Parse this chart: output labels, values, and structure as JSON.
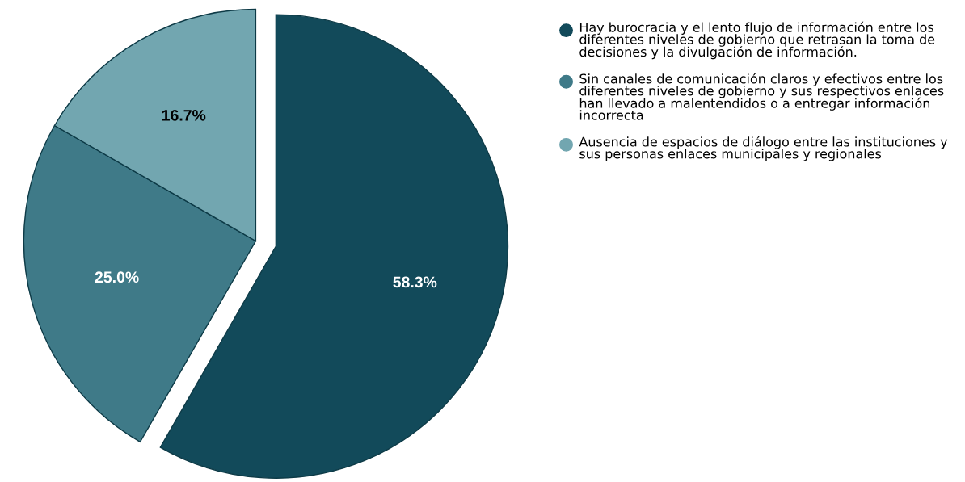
{
  "chart_data": {
    "type": "pie",
    "categories": [
      "Hay burocracia y el lento flujo de información entre los diferentes niveles de gobierno que retrasan la toma de decisiones y la divulgación de información.",
      "Sin canales de comunicación claros y efectivos entre los diferentes niveles de gobierno y sus respectivos enlaces han llevado a malentendidos o a entregar información incorrecta",
      "Ausencia de espacios de diálogo entre las instituciones y sus personas enlaces municipales y regionales"
    ],
    "values": [
      58.3,
      25.0,
      16.7
    ],
    "value_labels": [
      "58.3%",
      "25.0%",
      "16.7%"
    ],
    "colors": [
      "#124a5a",
      "#3f7a88",
      "#72a6b0"
    ],
    "legend": "right"
  }
}
